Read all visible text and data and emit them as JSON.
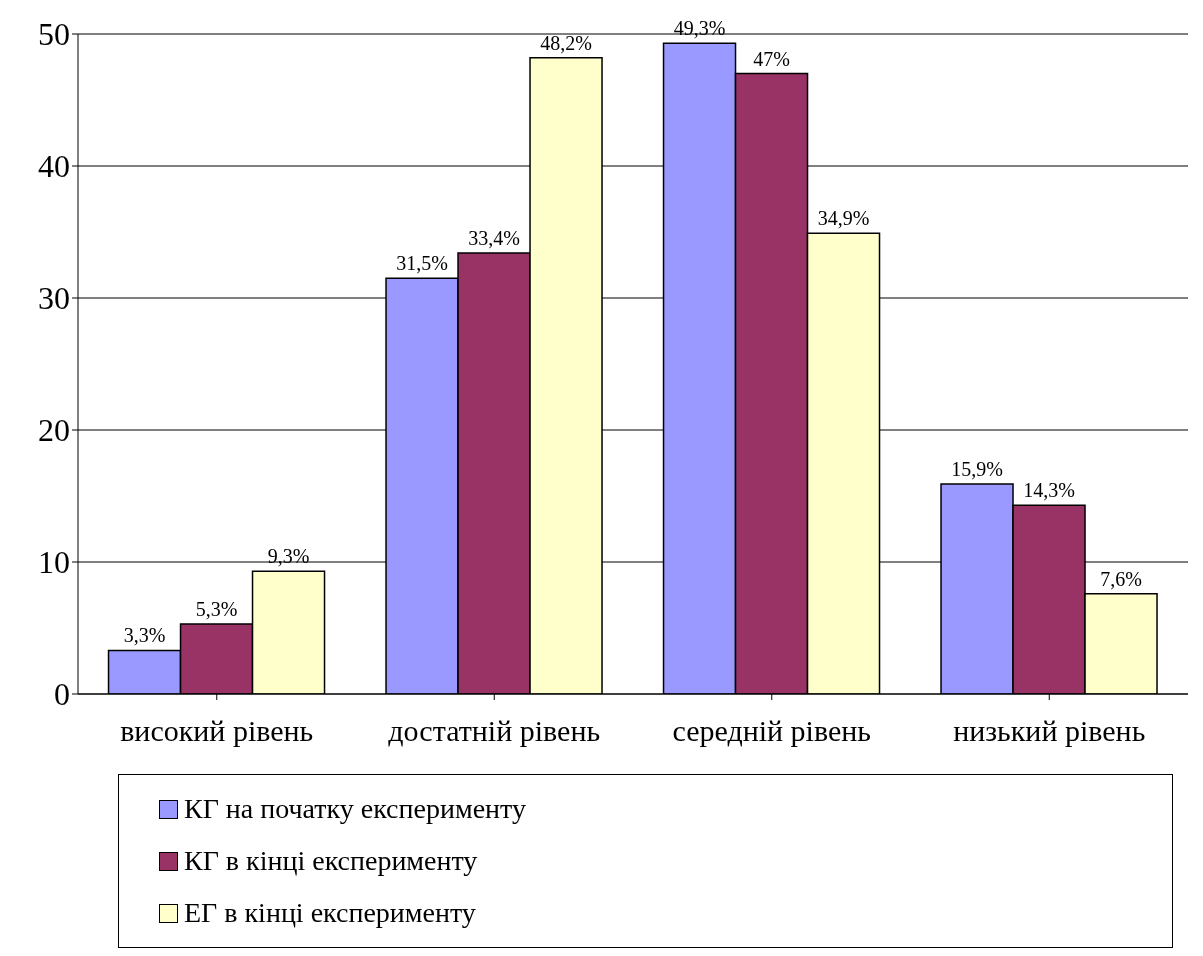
{
  "chart_data": {
    "type": "bar",
    "categories": [
      "високий рівень",
      "достатній рівень",
      "середній рівень",
      "низький рівень"
    ],
    "series": [
      {
        "name": "КГ на початку експерименту",
        "color": "#9999ff",
        "values": [
          3.3,
          31.5,
          49.3,
          15.9
        ],
        "value_labels": [
          "3,3%",
          "31,5%",
          "49,3%",
          "15,9%"
        ]
      },
      {
        "name": "КГ в кінці експерименту",
        "color": "#993366",
        "values": [
          5.3,
          33.4,
          47,
          14.3
        ],
        "value_labels": [
          "5,3%",
          "33,4%",
          "47%",
          "14,3%"
        ]
      },
      {
        "name": "ЕГ в кінці експерименту",
        "color": "#ffffcc",
        "values": [
          9.3,
          48.2,
          34.9,
          7.6
        ],
        "value_labels": [
          "9,3%",
          "48,2%",
          "34,9%",
          "7,6%"
        ]
      }
    ],
    "ylim": [
      0,
      50
    ],
    "yticks": [
      0,
      10,
      20,
      30,
      40,
      50
    ],
    "grid": "y",
    "legend": "bottom"
  }
}
